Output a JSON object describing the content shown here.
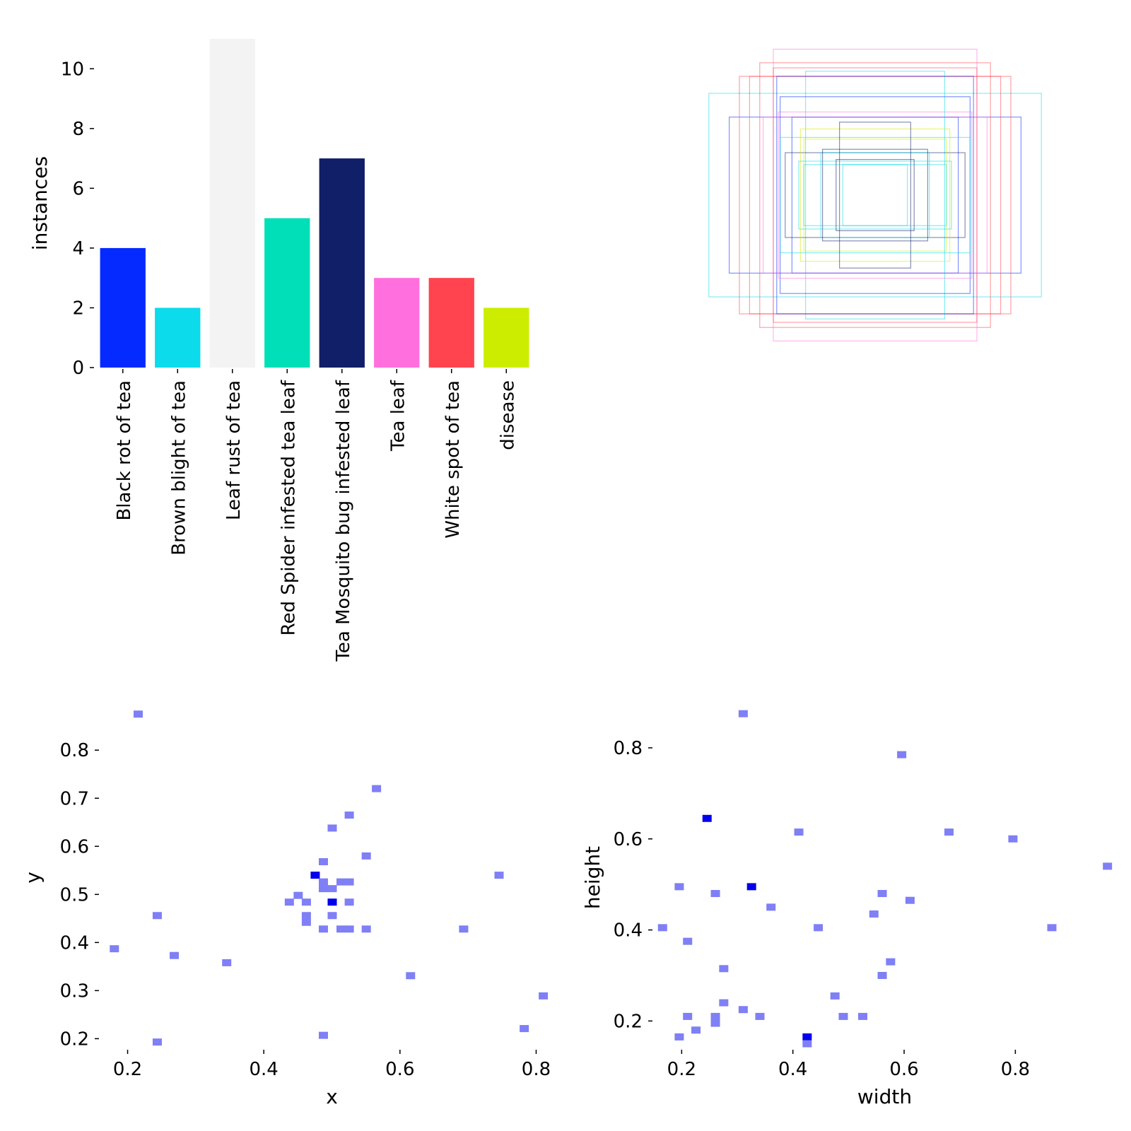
{
  "chart_data": [
    {
      "type": "bar",
      "categories": [
        "Black rot of tea",
        "Brown blight of tea",
        "Leaf rust of tea",
        "Red Spider infested tea leaf",
        "Tea Mosquito bug infested leaf",
        "Tea leaf",
        "White spot of tea",
        "disease"
      ],
      "values": [
        4,
        2,
        11,
        5,
        7,
        3,
        3,
        2
      ],
      "colors": [
        "#042aff",
        "#0bdbeb",
        "#f3f3f3",
        "#00dfb7",
        "#111f68",
        "#ff6fdd",
        "#ff444f",
        "#cced00"
      ],
      "xlabel": "",
      "ylabel": "instances",
      "ylim": [
        0,
        11
      ],
      "yticks": [
        0,
        2,
        4,
        6,
        8,
        10
      ]
    },
    {
      "type": "boxes",
      "boxes": [
        {
          "w": 0.98,
          "h": 0.6,
          "color": "#0bdbeb"
        },
        {
          "w": 0.86,
          "h": 0.46,
          "color": "#042aff"
        },
        {
          "w": 0.74,
          "h": 0.7,
          "color": "#ff444f"
        },
        {
          "w": 0.68,
          "h": 0.78,
          "color": "#ff444f"
        },
        {
          "w": 0.6,
          "h": 0.86,
          "color": "#ff6fdd"
        },
        {
          "w": 0.8,
          "h": 0.7,
          "color": "#ff444f"
        },
        {
          "w": 0.41,
          "h": 0.73,
          "color": "#0bdbeb"
        },
        {
          "w": 0.58,
          "h": 0.7,
          "color": "#042aff"
        },
        {
          "w": 0.49,
          "h": 0.46,
          "color": "#042aff"
        },
        {
          "w": 0.66,
          "h": 0.46,
          "color": "#ff6fdd"
        },
        {
          "w": 0.56,
          "h": 0.58,
          "color": "#042aff"
        },
        {
          "w": 0.57,
          "h": 0.49,
          "color": "#ff6fdd"
        },
        {
          "w": 0.56,
          "h": 0.34,
          "color": "#0bdbeb"
        },
        {
          "w": 0.53,
          "h": 0.25,
          "color": "#111f68"
        },
        {
          "w": 0.44,
          "h": 0.39,
          "color": "#cced00"
        },
        {
          "w": 0.42,
          "h": 0.33,
          "color": "#cced00"
        },
        {
          "w": 0.32,
          "h": 0.25,
          "color": "#0bdbeb"
        },
        {
          "w": 0.31,
          "h": 0.27,
          "color": "#111f68"
        },
        {
          "w": 0.21,
          "h": 0.43,
          "color": "#111f68"
        },
        {
          "w": 0.45,
          "h": 0.2,
          "color": "#0bdbeb"
        },
        {
          "w": 0.42,
          "h": 0.18,
          "color": "#0bdbeb"
        },
        {
          "w": 0.23,
          "h": 0.21,
          "color": "#111f68"
        },
        {
          "w": 0.19,
          "h": 0.18,
          "color": "#0bdbeb"
        },
        {
          "w": 0.6,
          "h": 0.75,
          "color": "#ff444f"
        }
      ]
    },
    {
      "type": "heatmap",
      "xlabel": "x",
      "ylabel": "y",
      "xlim": [
        0.16,
        0.84
      ],
      "ylim": [
        0.18,
        0.89
      ],
      "xticks": [
        0.2,
        0.4,
        0.6,
        0.8
      ],
      "yticks": [
        0.2,
        0.3,
        0.4,
        0.5,
        0.6,
        0.7,
        0.8
      ],
      "points": [
        [
          0.215,
          0.875,
          1
        ],
        [
          0.565,
          0.72,
          1
        ],
        [
          0.525,
          0.665,
          1
        ],
        [
          0.5,
          0.638,
          1
        ],
        [
          0.55,
          0.58,
          1
        ],
        [
          0.487,
          0.568,
          1
        ],
        [
          0.475,
          0.54,
          2
        ],
        [
          0.745,
          0.54,
          1
        ],
        [
          0.487,
          0.526,
          1
        ],
        [
          0.513,
          0.526,
          1
        ],
        [
          0.525,
          0.526,
          1
        ],
        [
          0.487,
          0.512,
          1
        ],
        [
          0.5,
          0.512,
          1
        ],
        [
          0.45,
          0.498,
          1
        ],
        [
          0.437,
          0.484,
          1
        ],
        [
          0.462,
          0.484,
          1
        ],
        [
          0.5,
          0.484,
          2
        ],
        [
          0.525,
          0.484,
          1
        ],
        [
          0.243,
          0.456,
          1
        ],
        [
          0.462,
          0.456,
          1
        ],
        [
          0.5,
          0.456,
          1
        ],
        [
          0.462,
          0.442,
          1
        ],
        [
          0.487,
          0.428,
          1
        ],
        [
          0.513,
          0.428,
          1
        ],
        [
          0.525,
          0.428,
          1
        ],
        [
          0.55,
          0.428,
          1
        ],
        [
          0.693,
          0.428,
          1
        ],
        [
          0.18,
          0.387,
          1
        ],
        [
          0.268,
          0.373,
          1
        ],
        [
          0.345,
          0.358,
          1
        ],
        [
          0.615,
          0.331,
          1
        ],
        [
          0.81,
          0.289,
          1
        ],
        [
          0.782,
          0.221,
          1
        ],
        [
          0.487,
          0.207,
          1
        ],
        [
          0.243,
          0.193,
          1
        ]
      ]
    },
    {
      "type": "heatmap",
      "xlabel": "width",
      "ylabel": "height",
      "xlim": [
        0.15,
        0.98
      ],
      "ylim": [
        0.14,
        0.89
      ],
      "xticks": [
        0.2,
        0.4,
        0.6,
        0.8
      ],
      "yticks": [
        0.2,
        0.4,
        0.6,
        0.8
      ],
      "points": [
        [
          0.31,
          0.875,
          1
        ],
        [
          0.595,
          0.785,
          1
        ],
        [
          0.245,
          0.645,
          2
        ],
        [
          0.41,
          0.615,
          1
        ],
        [
          0.68,
          0.615,
          1
        ],
        [
          0.795,
          0.6,
          1
        ],
        [
          0.965,
          0.54,
          1
        ],
        [
          0.195,
          0.495,
          1
        ],
        [
          0.325,
          0.495,
          2
        ],
        [
          0.26,
          0.48,
          1
        ],
        [
          0.56,
          0.48,
          1
        ],
        [
          0.61,
          0.465,
          1
        ],
        [
          0.36,
          0.45,
          1
        ],
        [
          0.545,
          0.435,
          1
        ],
        [
          0.165,
          0.405,
          1
        ],
        [
          0.445,
          0.405,
          1
        ],
        [
          0.865,
          0.405,
          1
        ],
        [
          0.21,
          0.375,
          1
        ],
        [
          0.575,
          0.33,
          1
        ],
        [
          0.275,
          0.315,
          1
        ],
        [
          0.56,
          0.3,
          1
        ],
        [
          0.475,
          0.255,
          1
        ],
        [
          0.275,
          0.24,
          1
        ],
        [
          0.31,
          0.225,
          1
        ],
        [
          0.21,
          0.21,
          1
        ],
        [
          0.26,
          0.21,
          1
        ],
        [
          0.34,
          0.21,
          1
        ],
        [
          0.49,
          0.21,
          1
        ],
        [
          0.525,
          0.21,
          1
        ],
        [
          0.26,
          0.195,
          1
        ],
        [
          0.225,
          0.18,
          1
        ],
        [
          0.195,
          0.165,
          1
        ],
        [
          0.425,
          0.165,
          2
        ],
        [
          0.425,
          0.15,
          1
        ]
      ]
    }
  ]
}
